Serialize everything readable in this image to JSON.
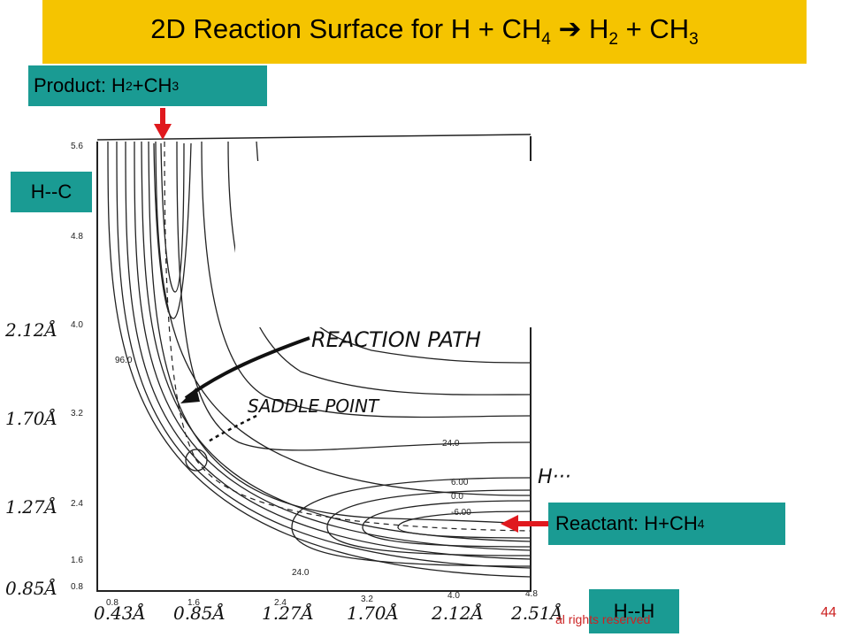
{
  "title": {
    "main": "2D Reaction Surface for H + CH",
    "sub1": "4",
    "arrow": "➔",
    "mid": " H",
    "sub2": "2",
    "end": " + CH",
    "sub3": "3"
  },
  "labels": {
    "product": {
      "text": "Product: H",
      "sub1": "2",
      "mid": "+CH",
      "sub2": "3"
    },
    "hc": "H--C",
    "reactant": {
      "text": "Reactant: H+CH",
      "sub": "4"
    },
    "hh": "H--H"
  },
  "y_axis_ticks": [
    "5.6",
    "4.8",
    "4.0",
    "3.2",
    "2.4",
    "1.6",
    "0.8"
  ],
  "x_axis_ticks": [
    "0.8",
    "1.6",
    "2.4",
    "3.2",
    "4.0",
    "4.8"
  ],
  "y_axis_angstrom": [
    "2.12Å",
    "1.70Å",
    "1.27Å",
    "0.85Å"
  ],
  "x_axis_angstrom": [
    "0.43Å",
    "0.85Å",
    "1.27Å",
    "1.70Å",
    "2.12Å",
    "2.51Å"
  ],
  "contour_labels": [
    "24.0",
    "6.00",
    "0.0",
    "-6.00",
    "96.0",
    "24.0"
  ],
  "annotations": {
    "reaction_path": "REACTION PATH",
    "saddle_point": "SADDLE POINT",
    "h_dots": "H···"
  },
  "footer": "al rights reserved",
  "page_number": "44",
  "colors": {
    "title_bg": "#f5c400",
    "label_bg": "#1a9b93",
    "arrow": "#e0191e"
  }
}
